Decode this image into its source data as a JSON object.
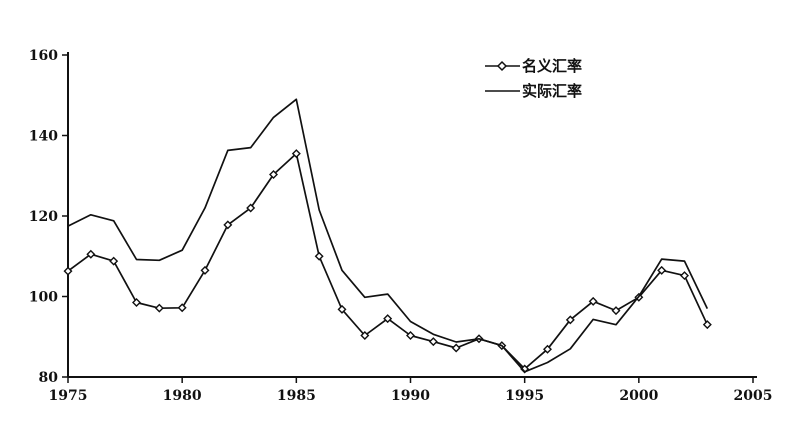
{
  "chart_data": {
    "type": "line",
    "title": "",
    "xlabel": "",
    "ylabel": "",
    "xlim": [
      1975,
      2005
    ],
    "ylim": [
      80,
      160
    ],
    "x_ticks": [
      "1975",
      "1980",
      "1985",
      "1990",
      "1995",
      "2000",
      "2005"
    ],
    "y_ticks": [
      "80",
      "100",
      "120",
      "140",
      "160"
    ],
    "grid": false,
    "legend_position": "top-right",
    "x": [
      1975,
      1976,
      1977,
      1978,
      1979,
      1980,
      1981,
      1982,
      1983,
      1984,
      1985,
      1986,
      1987,
      1988,
      1989,
      1990,
      1991,
      1992,
      1993,
      1994,
      1995,
      1996,
      1997,
      1998,
      1999,
      2000,
      2001,
      2002,
      2003
    ],
    "series": [
      {
        "name": "名义汇率",
        "marker": "diamond",
        "values": [
          106.3,
          110.5,
          108.8,
          98.5,
          97.1,
          97.2,
          106.5,
          117.8,
          122.0,
          130.3,
          135.5,
          110.0,
          96.8,
          90.3,
          94.5,
          90.3,
          88.8,
          87.2,
          89.5,
          87.8,
          82.0,
          86.9,
          94.2,
          98.8,
          96.5,
          99.8,
          106.5,
          105.2,
          93.0
        ]
      },
      {
        "name": "实际汇率",
        "marker": "none",
        "values": [
          117.5,
          120.3,
          118.8,
          109.2,
          109.0,
          111.5,
          122.0,
          136.3,
          137.0,
          144.5,
          149.0,
          121.5,
          106.5,
          99.8,
          100.6,
          93.8,
          90.6,
          88.7,
          89.5,
          87.8,
          81.3,
          83.6,
          87.0,
          94.3,
          93.0,
          100.0,
          109.3,
          108.8,
          97.0
        ]
      }
    ],
    "colors": {
      "line": "#111111"
    }
  }
}
